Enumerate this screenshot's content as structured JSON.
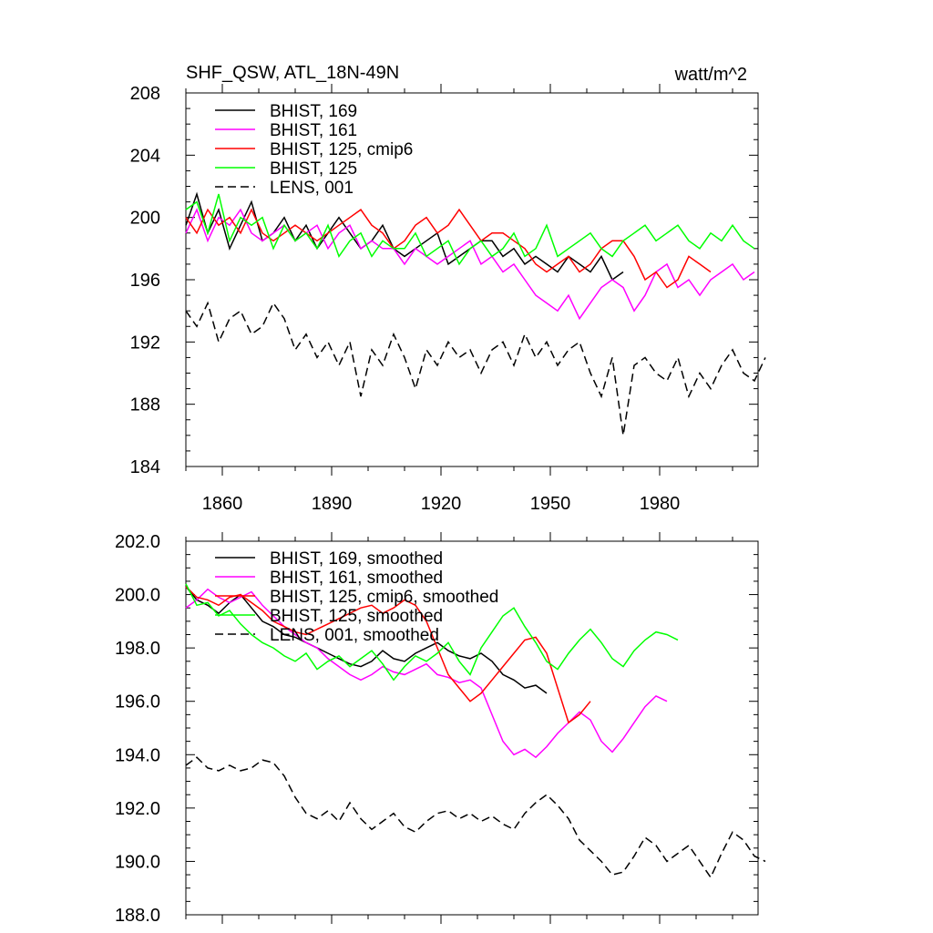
{
  "chart_data": [
    {
      "type": "line",
      "title_left": "SHF_QSW, ATL_18N-49N",
      "title_right": "watt/m^2",
      "xlim": [
        1850,
        2007
      ],
      "ylim": [
        184,
        208
      ],
      "yticks": [
        184,
        188,
        192,
        196,
        200,
        204,
        208
      ],
      "ytick_labels": [
        "184",
        "188",
        "192",
        "196",
        "200",
        "204",
        "208"
      ],
      "xticks": [
        1860,
        1890,
        1920,
        1950,
        1980
      ],
      "xtick_labels": [
        "1860",
        "1890",
        "1920",
        "1950",
        "1980"
      ],
      "series": [
        {
          "name": "BHIST, 169",
          "color": "#000000",
          "dash": "",
          "x_start": 1850,
          "step": 3,
          "values": [
            199.5,
            201.5,
            199.0,
            200.5,
            198.0,
            199.5,
            201.0,
            198.5,
            199.0,
            200.0,
            198.5,
            199.5,
            198.0,
            199.0,
            200.0,
            199.0,
            198.0,
            198.5,
            199.5,
            198.0,
            197.5,
            198.0,
            198.5,
            199.0,
            197.0,
            197.5,
            198.0,
            198.5,
            198.5,
            197.5,
            198.0,
            197.0,
            197.5,
            197.0,
            196.5,
            197.5,
            197.0,
            196.5,
            197.5,
            196.0,
            196.5
          ]
        },
        {
          "name": "BHIST, 161",
          "color": "#ff00ff",
          "dash": "",
          "x_start": 1850,
          "step": 3,
          "values": [
            199.0,
            200.5,
            198.5,
            200.0,
            199.5,
            200.5,
            199.0,
            198.5,
            199.0,
            199.5,
            198.5,
            199.0,
            199.5,
            198.0,
            199.0,
            199.5,
            198.0,
            198.5,
            198.0,
            198.0,
            197.0,
            198.0,
            197.5,
            197.0,
            197.5,
            198.0,
            198.5,
            197.0,
            197.5,
            196.5,
            197.0,
            196.0,
            195.0,
            194.5,
            194.0,
            195.0,
            193.5,
            194.5,
            195.5,
            196.0,
            195.5,
            194.0,
            195.0,
            196.5,
            197.0,
            195.5,
            196.0,
            195.0,
            196.0,
            196.5,
            197.0,
            196.0,
            196.5
          ]
        },
        {
          "name": "BHIST, 125, cmip6",
          "color": "#ff0000",
          "dash": "",
          "x_start": 1850,
          "step": 3,
          "values": [
            200.0,
            199.0,
            200.5,
            199.5,
            200.0,
            199.0,
            200.5,
            199.0,
            198.5,
            199.0,
            199.5,
            199.0,
            198.5,
            199.0,
            199.5,
            200.0,
            200.5,
            199.5,
            199.0,
            198.0,
            198.5,
            199.5,
            200.0,
            199.0,
            199.5,
            200.5,
            199.5,
            198.5,
            199.0,
            199.0,
            198.5,
            198.0,
            197.0,
            196.5,
            197.0,
            197.5,
            196.5,
            197.0,
            198.0,
            198.5,
            198.5,
            197.5,
            196.0,
            196.5,
            195.5,
            196.0,
            197.5,
            197.0,
            196.5
          ]
        },
        {
          "name": "BHIST, 125",
          "color": "#00ff00",
          "dash": "",
          "x_start": 1850,
          "step": 3,
          "values": [
            200.5,
            201.0,
            199.0,
            201.5,
            198.5,
            200.0,
            199.5,
            200.0,
            198.0,
            199.5,
            198.5,
            199.0,
            198.0,
            199.5,
            197.5,
            198.5,
            199.0,
            197.5,
            198.5,
            198.0,
            198.0,
            199.0,
            197.5,
            198.0,
            198.5,
            197.0,
            198.0,
            198.5,
            197.5,
            198.0,
            199.0,
            197.5,
            198.0,
            199.5,
            197.5,
            198.0,
            198.5,
            199.0,
            198.0,
            197.5,
            198.5,
            199.0,
            199.5,
            198.5,
            199.0,
            199.5,
            198.5,
            198.0,
            199.0,
            198.5,
            199.5,
            198.5,
            198.0
          ]
        },
        {
          "name": "LENS, 001",
          "color": "#000000",
          "dash": "9 5",
          "x_start": 1850,
          "step": 3,
          "values": [
            194.0,
            193.0,
            194.5,
            192.0,
            193.5,
            194.0,
            192.5,
            193.0,
            194.5,
            193.5,
            191.5,
            192.5,
            191.0,
            192.0,
            190.5,
            192.0,
            188.5,
            191.5,
            190.5,
            192.5,
            191.0,
            189.0,
            191.5,
            190.5,
            192.0,
            191.0,
            191.5,
            190.0,
            191.5,
            192.0,
            190.5,
            192.5,
            191.0,
            192.0,
            190.5,
            191.5,
            192.0,
            190.0,
            188.5,
            191.0,
            186.0,
            190.5,
            191.0,
            190.0,
            189.5,
            191.0,
            188.5,
            190.0,
            189.0,
            190.5,
            191.5,
            190.0,
            189.5,
            191.0
          ]
        }
      ]
    },
    {
      "type": "line",
      "xlim": [
        1850,
        2007
      ],
      "ylim": [
        188,
        202
      ],
      "yticks": [
        188,
        190,
        192,
        194,
        196,
        198,
        200,
        202
      ],
      "ytick_labels": [
        "188.0",
        "190.0",
        "192.0",
        "194.0",
        "196.0",
        "198.0",
        "200.0",
        "202.0"
      ],
      "xticks": [
        1860,
        1890,
        1920,
        1950,
        1980
      ],
      "series": [
        {
          "name": "BHIST, 169, smoothed",
          "color": "#000000",
          "dash": "",
          "x_start": 1850,
          "step": 3,
          "values": [
            200.3,
            199.8,
            199.6,
            199.3,
            199.7,
            200.0,
            199.5,
            199.0,
            198.8,
            198.5,
            198.4,
            198.2,
            198.0,
            197.8,
            197.6,
            197.4,
            197.3,
            197.5,
            197.9,
            197.6,
            197.5,
            197.8,
            198.0,
            198.2,
            197.9,
            197.7,
            197.6,
            197.8,
            197.5,
            197.0,
            196.8,
            196.5,
            196.6,
            196.3
          ]
        },
        {
          "name": "BHIST, 161, smoothed",
          "color": "#ff00ff",
          "dash": "",
          "x_start": 1850,
          "step": 3,
          "values": [
            199.5,
            199.8,
            200.2,
            199.9,
            199.7,
            199.9,
            200.1,
            199.6,
            199.2,
            198.8,
            198.5,
            198.2,
            198.0,
            197.6,
            197.3,
            197.0,
            196.8,
            197.0,
            197.3,
            197.1,
            197.0,
            197.2,
            197.4,
            197.0,
            196.9,
            196.7,
            196.8,
            196.5,
            195.5,
            194.5,
            194.0,
            194.2,
            193.9,
            194.3,
            194.8,
            195.2,
            195.6,
            195.3,
            194.5,
            194.1,
            194.6,
            195.2,
            195.8,
            196.2,
            196.0
          ]
        },
        {
          "name": "BHIST, 125, cmip6, smoothed",
          "color": "#ff0000",
          "dash": "",
          "x_start": 1850,
          "step": 3,
          "values": [
            200.3,
            199.9,
            199.8,
            199.6,
            199.9,
            200.0,
            199.7,
            199.4,
            199.0,
            198.8,
            198.6,
            198.5,
            198.7,
            198.9,
            199.1,
            199.3,
            199.5,
            199.6,
            199.3,
            199.5,
            199.8,
            199.6,
            199.0,
            198.0,
            197.0,
            196.5,
            196.0,
            196.3,
            196.8,
            197.3,
            197.8,
            198.3,
            198.4,
            197.8,
            196.5,
            195.2,
            195.5,
            196.0
          ]
        },
        {
          "name": "BHIST, 125, smoothed",
          "color": "#00ff00",
          "dash": "",
          "x_start": 1850,
          "step": 3,
          "values": [
            200.4,
            199.6,
            199.7,
            199.2,
            199.4,
            198.9,
            198.5,
            198.2,
            198.0,
            197.7,
            197.5,
            197.8,
            197.2,
            197.5,
            197.7,
            197.3,
            197.6,
            197.9,
            197.4,
            196.8,
            197.3,
            197.7,
            197.5,
            197.8,
            198.2,
            197.5,
            197.0,
            198.0,
            198.6,
            199.2,
            199.5,
            198.8,
            198.2,
            197.5,
            197.2,
            197.8,
            198.3,
            198.7,
            198.2,
            197.6,
            197.3,
            197.9,
            198.3,
            198.6,
            198.5,
            198.3
          ]
        },
        {
          "name": "LENS, 001, smoothed",
          "color": "#000000",
          "dash": "9 5",
          "x_start": 1850,
          "step": 3,
          "values": [
            193.6,
            193.9,
            193.5,
            193.4,
            193.6,
            193.4,
            193.5,
            193.8,
            193.7,
            193.2,
            192.4,
            191.8,
            191.6,
            191.9,
            191.5,
            192.2,
            191.6,
            191.2,
            191.5,
            191.8,
            191.3,
            191.1,
            191.5,
            191.8,
            191.9,
            191.6,
            191.8,
            191.5,
            191.7,
            191.4,
            191.2,
            191.8,
            192.2,
            192.5,
            192.1,
            191.6,
            190.8,
            190.4,
            190.0,
            189.5,
            189.6,
            190.2,
            190.9,
            190.6,
            190.0,
            190.3,
            190.6,
            190.0,
            189.4,
            190.3,
            191.1,
            190.8,
            190.2,
            190.0
          ]
        }
      ]
    }
  ]
}
